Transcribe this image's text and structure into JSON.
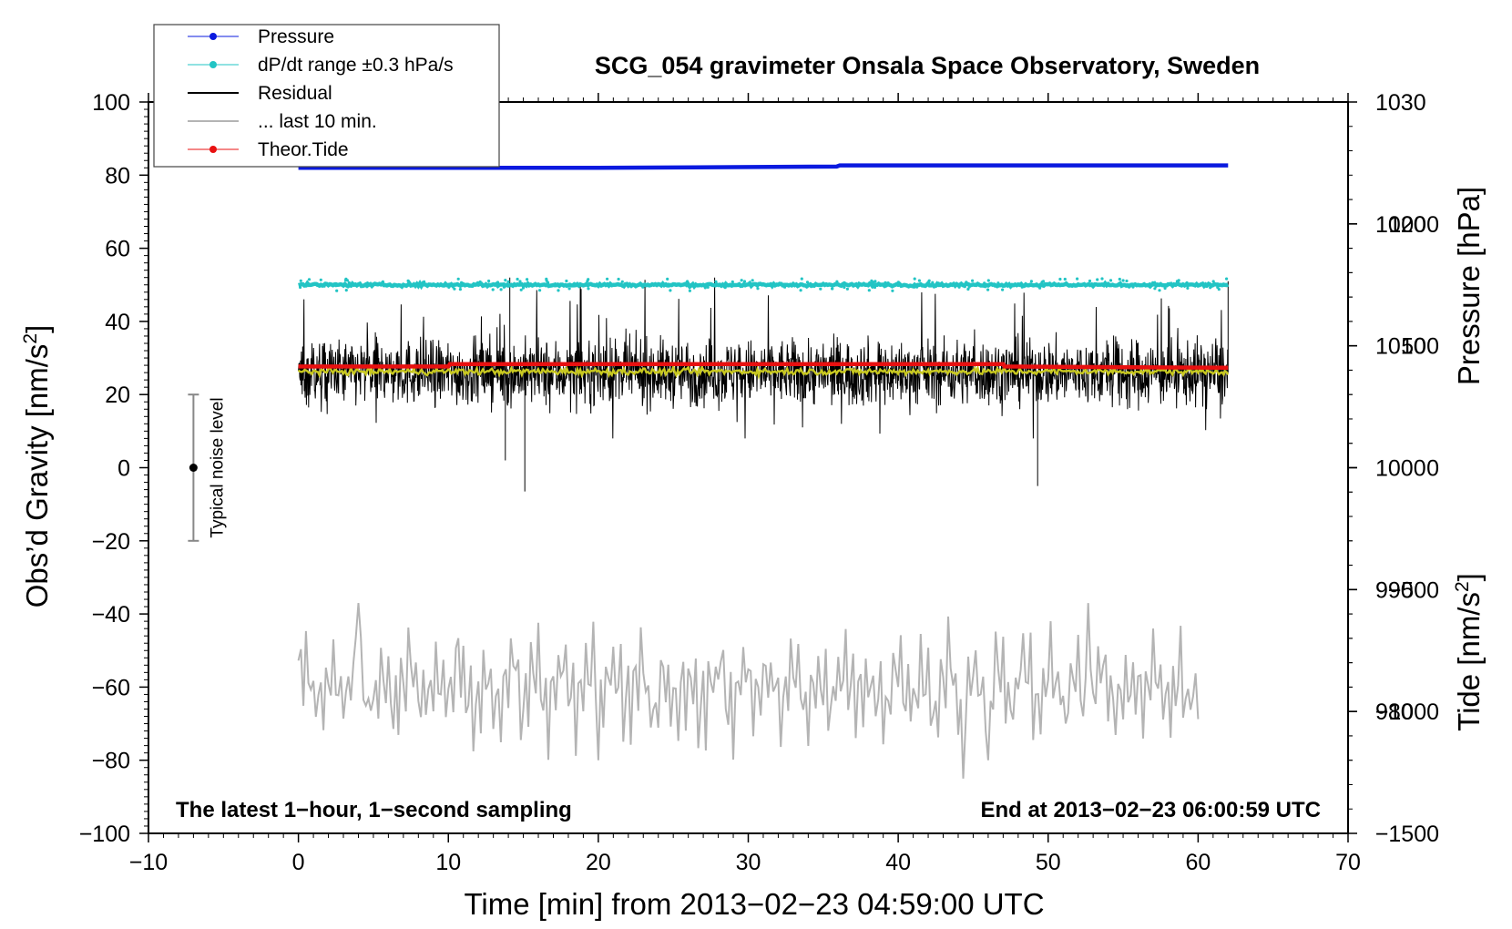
{
  "chart_data": {
    "type": "line",
    "title": "SCG_054 gravimeter Onsala Space Observatory, Sweden",
    "xlabel": "Time [min] from 2013−02−23 04:59:00 UTC",
    "ylabel_left": "Obs’d Gravity [nm/s",
    "ylabel_left_sup": "2",
    "ylabel_left_tail": "]",
    "ylabel_right_pressure": "Pressure [hPa]",
    "ylabel_right_tide": "Tide [nm/s",
    "ylabel_right_tide_sup": "2",
    "ylabel_right_tide_tail": "]",
    "xlim": [
      -10,
      70
    ],
    "ylim": [
      -100,
      100
    ],
    "x_ticks": [
      {
        "v": -10,
        "label": "−10"
      },
      {
        "v": 0,
        "label": "0"
      },
      {
        "v": 10,
        "label": "10"
      },
      {
        "v": 20,
        "label": "20"
      },
      {
        "v": 30,
        "label": "30"
      },
      {
        "v": 40,
        "label": "40"
      },
      {
        "v": 50,
        "label": "50"
      },
      {
        "v": 60,
        "label": "60"
      },
      {
        "v": 70,
        "label": "70"
      }
    ],
    "y_ticks": [
      {
        "v": 100,
        "label": "100"
      },
      {
        "v": 80,
        "label": "80"
      },
      {
        "v": 60,
        "label": "60"
      },
      {
        "v": 40,
        "label": "40"
      },
      {
        "v": 20,
        "label": "20"
      },
      {
        "v": 0,
        "label": "0"
      },
      {
        "v": -20,
        "label": "−20"
      },
      {
        "v": -40,
        "label": "−40"
      },
      {
        "v": -60,
        "label": "−60"
      },
      {
        "v": -80,
        "label": "−80"
      },
      {
        "v": -100,
        "label": "−100"
      }
    ],
    "pressure_axis": {
      "range": [
        970,
        1030
      ],
      "ticks": [
        {
          "v": 1030,
          "label": "1030"
        },
        {
          "v": 1020,
          "label": "1020"
        },
        {
          "v": 1010,
          "label": "1010"
        },
        {
          "v": 1000,
          "label": "1000"
        },
        {
          "v": 990,
          "label": "990"
        },
        {
          "v": 980,
          "label": "980"
        }
      ]
    },
    "tide_axis": {
      "range": [
        -1500,
        1500
      ],
      "ticks": [
        {
          "v": 1000,
          "label": "1000"
        },
        {
          "v": 500,
          "label": "500"
        },
        {
          "v": 0,
          "label": "0"
        },
        {
          "v": -500,
          "label": "−500"
        },
        {
          "v": -1000,
          "label": "−1000"
        },
        {
          "v": -1500,
          "label": "−1500"
        }
      ]
    },
    "legend": [
      {
        "name": "Pressure",
        "color": "#0a1adf",
        "marker": "dot"
      },
      {
        "name": "dP/dt range ±0.3 hPa/s",
        "color": "#22c4c4",
        "marker": "dot"
      },
      {
        "name": "Residual",
        "color": "#000000",
        "marker": "line"
      },
      {
        "name": "... last 10 min.",
        "color": "#b4b4b4",
        "marker": "line"
      },
      {
        "name": "Theor.Tide",
        "color": "#e81010",
        "marker": "dot"
      }
    ],
    "series": [
      {
        "name": "Pressure",
        "axis": "pressure",
        "color": "#0a1adf",
        "x": [
          0,
          20,
          35.9,
          36.1,
          62
        ],
        "values": [
          1024.6,
          1024.6,
          1024.7,
          1024.8,
          1024.8
        ]
      },
      {
        "name": "dP/dt range ±0.3 hPa/s",
        "axis": "gravity",
        "color": "#22c4c4",
        "baseline": 50,
        "x_start": 0,
        "x_end": 62
      },
      {
        "name": "Residual",
        "axis": "gravity",
        "color": "#000000",
        "baseline": 26,
        "min": -6.5,
        "max": 53,
        "x_start": 0,
        "x_end": 62
      },
      {
        "name": "Residual smoothed",
        "axis": "gravity",
        "color": "#c8c820",
        "baseline": 26.3,
        "x_start": 0,
        "x_end": 62
      },
      {
        "name": "... last 10 min.",
        "axis": "gravity",
        "color": "#b4b4b4",
        "center": -60,
        "min": -85,
        "max": -37,
        "x_start": 0,
        "x_end": 60
      },
      {
        "name": "Theor.Tide",
        "axis": "tide",
        "color": "#e81010",
        "x": [
          0,
          10,
          10.1,
          47,
          47.1,
          62
        ],
        "values": [
          415,
          415,
          425,
          425,
          415,
          410
        ]
      }
    ],
    "noise_bar": {
      "label": "Typical noise level",
      "x": -7,
      "center": 0,
      "low": -20,
      "high": 20
    },
    "annotations": {
      "left": "The latest 1−hour, 1−second sampling",
      "right": "End at 2013−02−23 06:00:59 UTC"
    }
  }
}
